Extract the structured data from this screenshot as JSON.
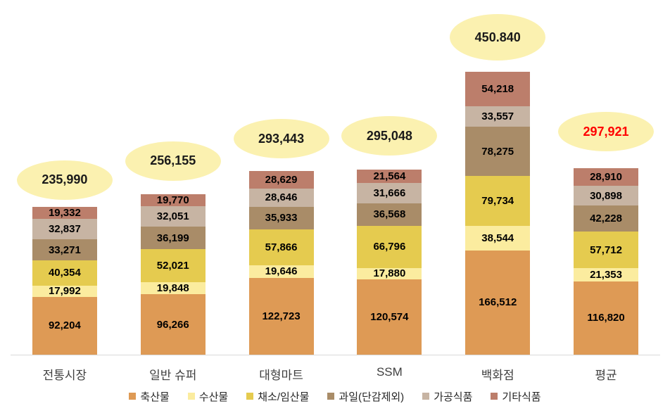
{
  "chart_data": {
    "type": "bar",
    "variant": "stacked-column",
    "title": "",
    "xlabel": "",
    "ylabel": "",
    "gridlines": false,
    "y_axis_visible": false,
    "legend_position": "bottom",
    "categories": [
      "전통시장",
      "일반 슈퍼",
      "대형마트",
      "SSM",
      "백화점",
      "평균"
    ],
    "series": [
      {
        "name": "축산물",
        "color": "#DE9A55",
        "values": [
          92204,
          96266,
          122723,
          120574,
          166512,
          116820
        ]
      },
      {
        "name": "수산물",
        "color": "#FBEC9F",
        "values": [
          17992,
          19848,
          19646,
          17880,
          38544,
          21353
        ]
      },
      {
        "name": "채소/임산물",
        "color": "#E5CB4F",
        "values": [
          40354,
          52021,
          57866,
          66796,
          79734,
          57712
        ]
      },
      {
        "name": "과일(단감제외)",
        "color": "#A98C68",
        "values": [
          33271,
          36199,
          35933,
          36568,
          78275,
          42228
        ]
      },
      {
        "name": "가공식품",
        "color": "#C7B4A3",
        "values": [
          32837,
          32051,
          28646,
          31666,
          33557,
          30898
        ]
      },
      {
        "name": "기타식품",
        "color": "#BC7E6B",
        "values": [
          19332,
          19770,
          28629,
          21564,
          54218,
          28910
        ]
      }
    ],
    "totals": {
      "labels": [
        "235,990",
        "256,155",
        "293,443",
        "295,048",
        "450.840",
        "297,921"
      ],
      "highlight_index": 5,
      "highlight_color": "#FF0000",
      "bubble_fill": "#FBF1B0"
    },
    "axis": {
      "baseline_color": "#D9D9D9"
    }
  }
}
